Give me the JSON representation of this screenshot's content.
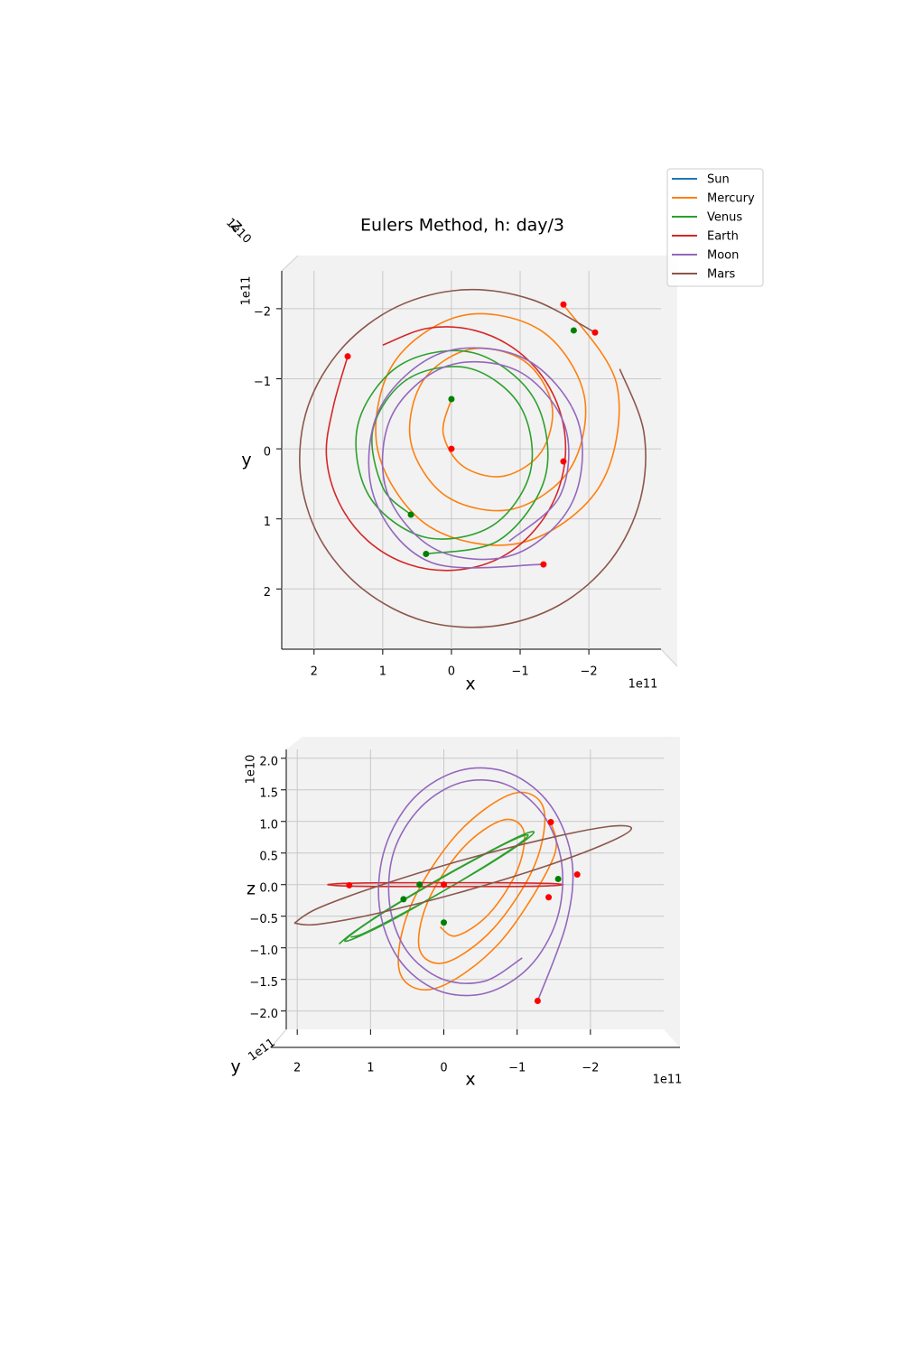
{
  "chart_data": [
    {
      "type": "line",
      "title": "Eulers Method, h: day/3",
      "xlabel": "x",
      "ylabel": "y",
      "zlabel": "z",
      "x_offset": "1e11",
      "y_offset": "1e11",
      "z_offset": "1e10",
      "xlim": [
        2.47,
        -3.05
      ],
      "ylim": [
        2.86,
        -2.54
      ],
      "xticks": [
        2,
        1,
        0,
        {
          "value": -1,
          "label": "−1"
        },
        {
          "value": -2,
          "label": "−2"
        }
      ],
      "yticks": [
        {
          "value": -2,
          "label": "−2"
        },
        {
          "value": -1,
          "label": "−1"
        },
        0,
        1,
        2
      ],
      "grid": true,
      "legend": "upper right",
      "series": [
        {
          "name": "Sun",
          "color": "#1f77b4",
          "x": [
            0
          ],
          "values": [
            0
          ]
        },
        {
          "name": "Mercury",
          "color": "#ff7f0e",
          "x": [
            0,
            0.12,
            -0.17,
            -0.76,
            -1.31,
            -1.46,
            -1.05,
            -0.27,
            0.42,
            0.59,
            0.07,
            -0.89,
            -1.73,
            -1.93,
            -1.3,
            -0.15,
            0.85,
            1.07,
            0.32,
            -1.02,
            -2.16,
            -2.41,
            -1.63
          ],
          "values": [
            -0.71,
            -0.22,
            0.25,
            0.39,
            0.04,
            -0.64,
            -1.26,
            -1.42,
            -0.96,
            -0.09,
            0.68,
            0.86,
            0.28,
            -0.77,
            -1.69,
            -1.9,
            -1.21,
            0.03,
            1.11,
            1.34,
            0.53,
            -0.9,
            -2.06
          ]
        },
        {
          "name": "Venus",
          "color": "#2ca02c",
          "x": [
            0.37,
            -0.7,
            -1.37,
            -1.2,
            -0.32,
            0.74,
            1.36,
            1.2,
            0.39,
            -0.59,
            -1.15,
            -1.0,
            -0.26,
            0.63,
            1.14,
            1.0,
            0.59
          ],
          "values": [
            1.5,
            1.3,
            0.38,
            -0.72,
            -1.37,
            -1.2,
            -0.35,
            0.67,
            1.26,
            1.1,
            0.32,
            -0.61,
            -1.15,
            -1.0,
            -0.29,
            0.55,
            0.94
          ]
        },
        {
          "name": "Earth",
          "color": "#d62728",
          "x": [
            1.51,
            1.72,
            1.82,
            1.64,
            1.22,
            0.62,
            -0.07,
            -0.74,
            -1.27,
            -1.59,
            -1.65,
            -1.43,
            -0.97,
            -0.34,
            0.35,
            1.0
          ],
          "values": [
            -1.32,
            -0.6,
            0.09,
            0.76,
            1.31,
            1.65,
            1.73,
            1.54,
            1.09,
            0.48,
            -0.21,
            -0.87,
            -1.39,
            -1.69,
            -1.72,
            -1.48
          ]
        },
        {
          "name": "Moon",
          "color": "#9467bd",
          "x": [
            -0.84,
            -1.58,
            -1.65,
            -0.97,
            0.07,
            0.87,
            0.94,
            0.22,
            -0.91,
            -1.76,
            -1.84,
            -1.06,
            0.14,
            1.05,
            1.13,
            0.3,
            -1.34
          ],
          "values": [
            1.32,
            0.67,
            -0.33,
            -1.11,
            -1.18,
            -0.47,
            0.61,
            1.44,
            1.51,
            0.76,
            -0.4,
            -1.29,
            -1.37,
            -0.56,
            0.68,
            1.62,
            1.65
          ]
        },
        {
          "name": "Mars",
          "color": "#8c564b",
          "x": [
            -2.09,
            -1.17,
            -0.18,
            0.79,
            1.59,
            2.09,
            2.2,
            1.92,
            1.28,
            0.39,
            -0.62,
            -1.57,
            -2.32,
            -2.75,
            -2.8,
            -2.45
          ],
          "values": [
            -1.66,
            -2.13,
            -2.27,
            -2.03,
            -1.44,
            -0.6,
            0.35,
            1.27,
            2.01,
            2.46,
            2.53,
            2.23,
            1.59,
            0.72,
            -0.24,
            -1.14
          ]
        }
      ],
      "markers": [
        {
          "color": "red",
          "x": [
            0,
            -1.63,
            -2.09,
            1.51,
            -1.63,
            -1.34
          ],
          "values": [
            0,
            -2.06,
            -1.66,
            -1.32,
            0.18,
            1.65
          ]
        },
        {
          "color": "green",
          "x": [
            0,
            0.59,
            0.37,
            -1.78
          ],
          "values": [
            -0.71,
            0.94,
            1.5,
            -1.69
          ]
        }
      ]
    },
    {
      "type": "line",
      "xlabel": "x",
      "ylabel": "z",
      "depth_label": "y",
      "x_offset": "1e11",
      "y_offset": "1e10",
      "depth_offset": "1e11",
      "xlim": [
        2.15,
        -3.0
      ],
      "ylim": [
        -2.29,
        2.14
      ],
      "xticks": [
        2,
        1,
        0,
        {
          "value": -1,
          "label": "−1"
        },
        {
          "value": -2,
          "label": "−2"
        }
      ],
      "yticks": [
        {
          "value": -2,
          "label": "−2.0"
        },
        {
          "value": -1.5,
          "label": "−1.5"
        },
        {
          "value": -1,
          "label": "−1.0"
        },
        {
          "value": -0.5,
          "label": "−0.5"
        },
        {
          "value": 0,
          "label": "0.0"
        },
        0.5,
        {
          "value": 1,
          "label": "1.0"
        },
        1.5,
        {
          "value": 2,
          "label": "2.0"
        }
      ],
      "grid": true,
      "series": [
        {
          "name": "Sun",
          "color": "#1f77b4",
          "x": [
            0
          ],
          "values": [
            0
          ]
        },
        {
          "name": "Mercury",
          "color": "#ff7f0e",
          "x": [
            0.05,
            -0.17,
            -0.61,
            -1.0,
            -1.09,
            -0.8,
            -0.26,
            0.22,
            0.33,
            -0.03,
            -0.68,
            -1.24,
            -1.36,
            -0.94,
            -0.18,
            0.46,
            0.6,
            0.11,
            -0.76,
            -1.49,
            -1.46
          ],
          "values": [
            -0.67,
            -0.81,
            -0.47,
            0.22,
            0.85,
            1.02,
            0.58,
            -0.27,
            -1.03,
            -1.23,
            -0.69,
            0.31,
            1.21,
            1.44,
            0.8,
            -0.36,
            -1.39,
            -1.64,
            -0.92,
            0.41,
            0.99
          ]
        },
        {
          "name": "Venus",
          "color": "#2ca02c",
          "x": [
            1.43,
            1.24,
            0.75,
            0.08,
            -0.58,
            -1.06,
            -1.23,
            -1.05,
            -0.57,
            0.08,
            0.72,
            1.18,
            1.35,
            1.17,
            0.71,
            0.08,
            -0.54,
            -0.99,
            -1.15,
            -0.98,
            -0.53,
            0.08,
            0.68,
            1.11,
            1.27
          ],
          "values": [
            -0.94,
            -0.76,
            -0.38,
            0.08,
            0.5,
            0.78,
            0.83,
            0.65,
            0.29,
            -0.15,
            -0.57,
            -0.83,
            -0.89,
            -0.71,
            -0.36,
            0.07,
            0.47,
            0.73,
            0.78,
            0.61,
            0.27,
            -0.15,
            -0.53,
            -0.78,
            -0.83
          ]
        },
        {
          "name": "Earth",
          "color": "#d62728",
          "x": [
            1.59,
            1.37,
            0.79,
            -0.02,
            -0.83,
            -1.41,
            -1.63,
            -1.41,
            -0.83,
            -0.02,
            0.79,
            1.37,
            1.59
          ],
          "values": [
            0,
            0.02,
            0.03,
            0.03,
            0.03,
            0.02,
            0,
            -0.02,
            -0.03,
            -0.03,
            -0.03,
            -0.02,
            0
          ]
        },
        {
          "name": "Moon",
          "color": "#9467bd",
          "x": [
            -1.07,
            -0.55,
            0.03,
            0.51,
            0.74,
            0.68,
            0.31,
            -0.25,
            -0.86,
            -1.36,
            -1.61,
            -1.54,
            -1.16,
            -0.56,
            0.09,
            0.62,
            0.88,
            0.8,
            0.4,
            -0.23,
            -0.91,
            -1.47,
            -1.75,
            -1.67,
            -1.28
          ],
          "values": [
            -1.16,
            -1.53,
            -1.49,
            -1.04,
            -0.31,
            0.53,
            1.23,
            1.62,
            1.58,
            1.1,
            0.32,
            -0.56,
            -1.31,
            -1.72,
            -1.67,
            -1.17,
            -0.34,
            0.59,
            1.38,
            1.81,
            1.76,
            1.23,
            0.36,
            -0.62,
            -1.84
          ]
        },
        {
          "name": "Mars",
          "color": "#8c564b",
          "x": [
            2.04,
            1.73,
            0.89,
            -0.26,
            -1.41,
            -2.25,
            -2.56,
            -2.25,
            -1.41,
            -0.26,
            0.89,
            1.73,
            2.04
          ],
          "values": [
            -0.61,
            -0.38,
            -0.02,
            0.39,
            0.73,
            0.92,
            0.89,
            0.67,
            0.3,
            -0.11,
            -0.45,
            -0.63,
            -0.61
          ]
        }
      ],
      "markers": [
        {
          "color": "red",
          "x": [
            0,
            1.29,
            -1.46,
            -1.82,
            -1.43,
            -1.28
          ],
          "values": [
            0,
            -0.01,
            0.99,
            0.16,
            -0.2,
            -1.84
          ]
        },
        {
          "color": "green",
          "x": [
            0,
            0.55,
            0.33,
            -1.56
          ],
          "values": [
            -0.6,
            -0.23,
            0,
            0.09
          ]
        }
      ]
    }
  ]
}
